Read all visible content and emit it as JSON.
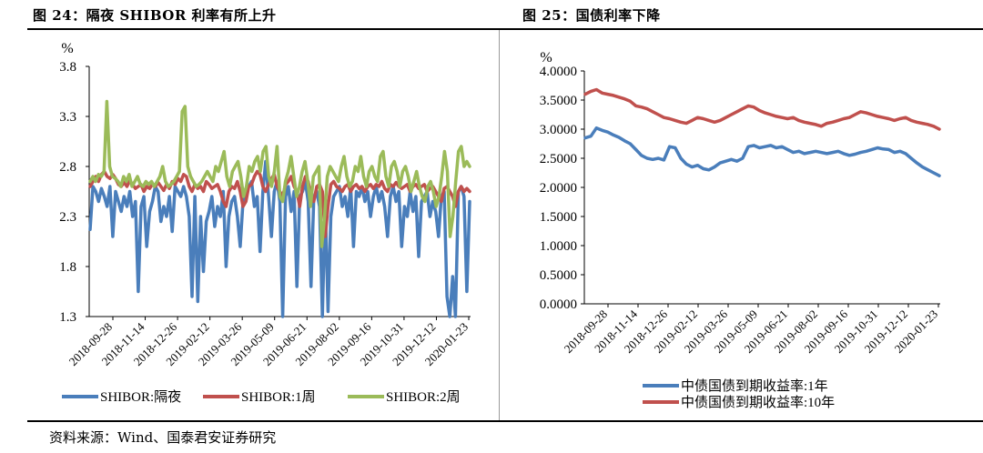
{
  "left_title": "图 24：隔夜 SHIBOR 利率有所上升",
  "right_title": "图 25：国债利率下降",
  "source": "资料来源：Wind、国泰君安证券研究",
  "chart_data": [
    {
      "type": "line",
      "title": "图 24：隔夜 SHIBOR 利率有所上升",
      "ylabel": "%",
      "ylim": [
        1.3,
        3.8
      ],
      "yticks": [
        "1.3",
        "1.8",
        "2.3",
        "2.8",
        "3.3",
        "3.8"
      ],
      "ytick_values": [
        1.3,
        1.8,
        2.3,
        2.8,
        3.3,
        3.8
      ],
      "xtick_labels": [
        "2018-09-28",
        "2018-11-14",
        "2018-12-26",
        "2019-02-12",
        "2019-03-26",
        "2019-05-09",
        "2019-06-21",
        "2019-08-02",
        "2019-09-16",
        "2019-10-31",
        "2019-12-12",
        "2020-01-23"
      ],
      "legend_position": "bottom",
      "grid": false,
      "series": [
        {
          "name": "SHIBOR:隔夜",
          "color": "#4A7EBB",
          "values": [
            2.17,
            2.6,
            2.55,
            2.45,
            2.58,
            2.5,
            2.4,
            2.6,
            2.1,
            2.55,
            2.45,
            2.35,
            2.5,
            2.4,
            2.55,
            2.3,
            2.45,
            1.55,
            2.4,
            2.5,
            2.0,
            2.35,
            2.45,
            2.6,
            2.55,
            2.25,
            2.4,
            2.3,
            2.5,
            2.15,
            2.6,
            2.55,
            2.5,
            2.6,
            2.5,
            2.3,
            1.5,
            2.5,
            1.45,
            2.3,
            1.75,
            2.25,
            2.35,
            2.5,
            2.2,
            2.4,
            2.3,
            2.55,
            1.8,
            2.3,
            2.45,
            2.5,
            2.3,
            2.0,
            2.45,
            2.55,
            2.6,
            2.65,
            2.4,
            2.5,
            1.95,
            2.55,
            2.85,
            2.5,
            2.1,
            2.55,
            2.65,
            2.45,
            1.25,
            2.5,
            2.6,
            2.35,
            2.55,
            1.6,
            2.5,
            2.55,
            2.65,
            2.45,
            1.6,
            2.5,
            2.55,
            2.4,
            1.3,
            2.45,
            1.35,
            2.3,
            2.5,
            2.55,
            2.6,
            2.4,
            2.5,
            2.3,
            2.6,
            2.0,
            2.55,
            2.5,
            2.6,
            2.45,
            2.55,
            2.3,
            2.5,
            2.6,
            2.45,
            2.55,
            2.4,
            2.1,
            2.5,
            2.6,
            2.45,
            2.55,
            2.0,
            2.4,
            2.3,
            2.55,
            2.35,
            2.5,
            1.9,
            2.45,
            2.5,
            2.55,
            2.3,
            2.45,
            2.35,
            2.1,
            2.5,
            2.55,
            1.5,
            1.25,
            1.7,
            1.3,
            2.55,
            2.6,
            2.5,
            1.55,
            2.45
          ]
        },
        {
          "name": "SHIBOR:1周",
          "color": "#C0504D",
          "values": [
            2.6,
            2.65,
            2.7,
            2.65,
            2.72,
            2.75,
            2.7,
            2.68,
            2.72,
            2.68,
            2.62,
            2.6,
            2.64,
            2.6,
            2.66,
            2.62,
            2.58,
            2.6,
            2.62,
            2.55,
            2.6,
            2.58,
            2.62,
            2.6,
            2.64,
            2.6,
            2.56,
            2.62,
            2.58,
            2.65,
            2.62,
            2.68,
            2.65,
            2.72,
            2.7,
            2.6,
            2.55,
            2.62,
            2.58,
            2.6,
            2.55,
            2.65,
            2.62,
            2.58,
            2.6,
            2.62,
            2.55,
            2.45,
            2.4,
            2.55,
            2.6,
            2.58,
            2.65,
            2.55,
            2.4,
            2.45,
            2.6,
            2.62,
            2.7,
            2.75,
            2.72,
            2.6,
            2.55,
            2.62,
            2.68,
            2.72,
            2.6,
            2.55,
            2.5,
            2.62,
            2.65,
            2.7,
            2.6,
            2.55,
            2.4,
            2.6,
            2.7,
            2.65,
            2.5,
            2.45,
            2.6,
            2.62,
            2.55,
            2.1,
            2.4,
            2.62,
            2.65,
            2.6,
            2.58,
            2.55,
            2.6,
            2.62,
            2.55,
            2.6,
            2.62,
            2.58,
            2.6,
            2.55,
            2.6,
            2.62,
            2.58,
            2.62,
            2.6,
            2.65,
            2.58,
            2.55,
            2.62,
            2.6,
            2.64,
            2.6,
            2.58,
            2.6,
            2.62,
            2.55,
            2.6,
            2.62,
            2.58,
            2.6,
            2.62,
            2.55,
            2.58,
            2.6,
            2.55,
            2.5,
            2.45,
            2.58,
            2.6,
            2.55,
            2.5,
            2.4,
            2.55,
            2.6,
            2.55,
            2.58,
            2.55
          ]
        },
        {
          "name": "SHIBOR:2周",
          "color": "#9BBB59",
          "values": [
            2.65,
            2.7,
            2.65,
            2.72,
            2.7,
            2.75,
            3.45,
            2.8,
            2.7,
            2.68,
            2.65,
            2.6,
            2.7,
            2.65,
            2.72,
            2.6,
            2.65,
            2.7,
            2.62,
            2.6,
            2.65,
            2.62,
            2.65,
            2.6,
            2.65,
            2.7,
            2.8,
            2.65,
            2.6,
            2.62,
            2.65,
            2.7,
            2.75,
            3.35,
            3.4,
            2.8,
            2.7,
            2.65,
            2.6,
            2.62,
            2.65,
            2.7,
            2.75,
            2.7,
            2.65,
            2.8,
            2.75,
            2.85,
            2.95,
            2.7,
            2.6,
            2.75,
            2.8,
            2.85,
            2.7,
            2.5,
            2.6,
            2.8,
            2.75,
            2.85,
            2.9,
            2.75,
            2.95,
            3.0,
            2.7,
            2.6,
            2.75,
            3.0,
            2.5,
            2.45,
            2.65,
            2.75,
            2.9,
            2.7,
            2.5,
            2.6,
            2.75,
            2.85,
            2.65,
            2.4,
            2.7,
            2.75,
            2.8,
            2.0,
            2.3,
            2.7,
            2.8,
            2.75,
            2.7,
            2.65,
            2.8,
            2.9,
            2.7,
            2.6,
            2.65,
            2.8,
            2.75,
            2.9,
            2.7,
            2.6,
            2.75,
            2.8,
            2.7,
            2.65,
            2.9,
            2.95,
            2.7,
            2.6,
            2.8,
            2.85,
            2.75,
            2.6,
            2.75,
            2.8,
            2.7,
            2.55,
            2.65,
            2.75,
            2.6,
            2.5,
            2.45,
            2.6,
            2.65,
            2.55,
            2.4,
            2.5,
            2.7,
            2.95,
            2.75,
            2.1,
            2.3,
            2.65,
            2.95,
            3.0,
            2.8,
            2.85,
            2.8
          ]
        }
      ]
    },
    {
      "type": "line",
      "title": "图 25：国债利率下降",
      "ylabel": "%",
      "ylim": [
        0.0,
        4.0
      ],
      "yticks": [
        "0.0000",
        "0.5000",
        "1.0000",
        "1.5000",
        "2.0000",
        "2.5000",
        "3.0000",
        "3.5000",
        "4.0000"
      ],
      "ytick_values": [
        0.0,
        0.5,
        1.0,
        1.5,
        2.0,
        2.5,
        3.0,
        3.5,
        4.0
      ],
      "xtick_labels": [
        "2018-09-28",
        "2018-11-14",
        "2018-12-26",
        "2019-02-12",
        "2019-03-26",
        "2019-05-09",
        "2019-06-21",
        "2019-08-02",
        "2019-09-16",
        "2019-10-31",
        "2019-12-12",
        "2020-01-23"
      ],
      "legend_position": "bottom",
      "grid": false,
      "series": [
        {
          "name": "中债国债到期收益率:1年",
          "color": "#4A7EBB",
          "values": [
            2.85,
            2.88,
            3.02,
            2.98,
            2.95,
            2.9,
            2.86,
            2.8,
            2.75,
            2.65,
            2.55,
            2.5,
            2.48,
            2.5,
            2.47,
            2.7,
            2.68,
            2.5,
            2.4,
            2.35,
            2.38,
            2.32,
            2.3,
            2.35,
            2.42,
            2.45,
            2.48,
            2.45,
            2.5,
            2.7,
            2.72,
            2.68,
            2.7,
            2.72,
            2.68,
            2.7,
            2.65,
            2.6,
            2.62,
            2.58,
            2.6,
            2.62,
            2.6,
            2.58,
            2.6,
            2.62,
            2.58,
            2.55,
            2.57,
            2.6,
            2.62,
            2.65,
            2.68,
            2.66,
            2.65,
            2.6,
            2.62,
            2.58,
            2.5,
            2.42,
            2.35,
            2.3,
            2.25,
            2.2
          ]
        },
        {
          "name": "中债国债到期收益率:10年",
          "color": "#C0504D",
          "values": [
            3.6,
            3.65,
            3.68,
            3.62,
            3.6,
            3.58,
            3.55,
            3.52,
            3.48,
            3.4,
            3.38,
            3.35,
            3.3,
            3.25,
            3.2,
            3.18,
            3.15,
            3.12,
            3.1,
            3.15,
            3.2,
            3.18,
            3.15,
            3.12,
            3.15,
            3.2,
            3.25,
            3.3,
            3.35,
            3.4,
            3.38,
            3.32,
            3.28,
            3.25,
            3.22,
            3.2,
            3.18,
            3.2,
            3.15,
            3.12,
            3.1,
            3.08,
            3.05,
            3.1,
            3.12,
            3.15,
            3.18,
            3.2,
            3.25,
            3.3,
            3.28,
            3.25,
            3.22,
            3.2,
            3.18,
            3.15,
            3.18,
            3.2,
            3.15,
            3.12,
            3.1,
            3.08,
            3.05,
            3.0
          ]
        }
      ]
    }
  ]
}
